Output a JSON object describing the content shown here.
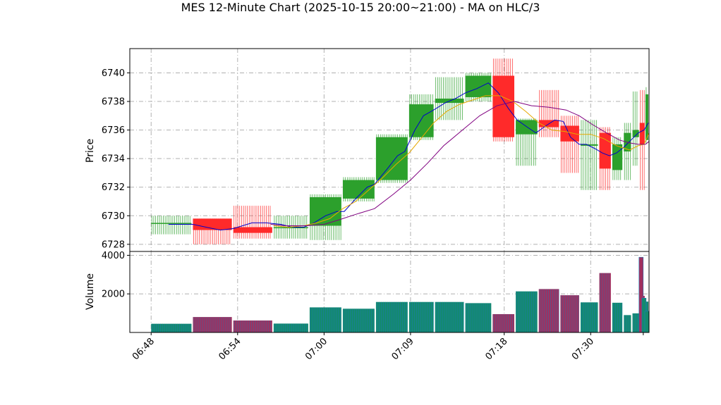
{
  "chart_data": {
    "type": "candlestick",
    "title": "MES 12-Minute Chart (2025-10-15 20:00~21:00) - MA on HLC/3",
    "price_panel": {
      "ylabel": "Price",
      "ylim": [
        6727.5,
        6741.7
      ],
      "yticks": [
        6728,
        6730,
        6732,
        6734,
        6736,
        6738,
        6740
      ],
      "grid": true
    },
    "volume_panel": {
      "ylabel": "Volume",
      "ylim": [
        0,
        4200
      ],
      "yticks": [
        2000,
        4000
      ],
      "grid": true
    },
    "x_axis": {
      "xlim": [
        6.52,
        42.55
      ],
      "ticks": [
        {
          "x": 8,
          "label": "06:48"
        },
        {
          "x": 14,
          "label": "06:54"
        },
        {
          "x": 20,
          "label": "07:00"
        },
        {
          "x": 26,
          "label": "07:09"
        },
        {
          "x": 32.5,
          "label": "07:18"
        },
        {
          "x": 38.5,
          "label": "07:30"
        },
        {
          "x": 42.15,
          "label": ""
        }
      ]
    },
    "colors": {
      "up": "#2ca02c",
      "down": "#ff2a2a",
      "ma_fast": "#0000cc",
      "ma_mid": "#e6a800",
      "ma_slow": "#800080",
      "vol_up": "#138a6e",
      "vol_down": "#a0305f"
    },
    "bars": [
      {
        "x0": 8.0,
        "x1": 10.8,
        "open": 6729.5,
        "high": 6730.0,
        "low": 6728.7,
        "close": 6729.5,
        "volume": 450
      },
      {
        "x0": 10.9,
        "x1": 13.6,
        "open": 6729.8,
        "high": 6729.8,
        "low": 6728.0,
        "close": 6729.0,
        "volume": 800
      },
      {
        "x0": 13.7,
        "x1": 16.4,
        "open": 6729.2,
        "high": 6730.7,
        "low": 6728.4,
        "close": 6728.8,
        "volume": 620
      },
      {
        "x0": 16.5,
        "x1": 18.9,
        "open": 6729.2,
        "high": 6730.0,
        "low": 6728.4,
        "close": 6729.2,
        "volume": 460
      },
      {
        "x0": 19.0,
        "x1": 21.2,
        "open": 6729.3,
        "high": 6731.5,
        "low": 6728.3,
        "close": 6731.3,
        "volume": 1300
      },
      {
        "x0": 21.3,
        "x1": 23.5,
        "open": 6731.2,
        "high": 6732.7,
        "low": 6731.0,
        "close": 6732.5,
        "volume": 1230
      },
      {
        "x0": 23.6,
        "x1": 25.8,
        "open": 6732.5,
        "high": 6735.7,
        "low": 6732.3,
        "close": 6735.5,
        "volume": 1580
      },
      {
        "x0": 25.9,
        "x1": 27.6,
        "open": 6735.5,
        "high": 6738.5,
        "low": 6735.3,
        "close": 6737.8,
        "volume": 1580
      },
      {
        "x0": 27.7,
        "x1": 29.7,
        "open": 6737.9,
        "high": 6739.7,
        "low": 6736.7,
        "close": 6738.2,
        "volume": 1580
      },
      {
        "x0": 29.8,
        "x1": 31.6,
        "open": 6738.3,
        "high": 6740.0,
        "low": 6738.0,
        "close": 6739.8,
        "volume": 1520
      },
      {
        "x0": 31.7,
        "x1": 33.2,
        "open": 6739.8,
        "high": 6741.0,
        "low": 6735.2,
        "close": 6735.5,
        "volume": 950
      },
      {
        "x0": 33.3,
        "x1": 34.8,
        "open": 6735.7,
        "high": 6736.8,
        "low": 6733.5,
        "close": 6736.7,
        "volume": 2130
      },
      {
        "x0": 34.9,
        "x1": 36.3,
        "open": 6736.7,
        "high": 6738.8,
        "low": 6735.5,
        "close": 6736.2,
        "volume": 2250
      },
      {
        "x0": 36.4,
        "x1": 37.7,
        "open": 6736.3,
        "high": 6737.0,
        "low": 6733.0,
        "close": 6735.2,
        "volume": 1930
      },
      {
        "x0": 37.8,
        "x1": 39.0,
        "open": 6734.9,
        "high": 6736.7,
        "low": 6731.8,
        "close": 6735.0,
        "volume": 1560
      },
      {
        "x0": 39.1,
        "x1": 39.9,
        "open": 6735.8,
        "high": 6736.2,
        "low": 6731.8,
        "close": 6733.3,
        "volume": 3080
      },
      {
        "x0": 40.0,
        "x1": 40.7,
        "open": 6733.2,
        "high": 6735.5,
        "low": 6732.5,
        "close": 6735.0,
        "volume": 1540
      },
      {
        "x0": 40.8,
        "x1": 41.3,
        "open": 6734.5,
        "high": 6736.5,
        "low": 6732.5,
        "close": 6735.8,
        "volume": 900
      },
      {
        "x0": 41.4,
        "x1": 41.85,
        "open": 6735.5,
        "high": 6738.7,
        "low": 6733.5,
        "close": 6736.0,
        "volume": 990
      },
      {
        "x0": 41.9,
        "x1": 42.25,
        "open": 6736.5,
        "high": 6738.8,
        "low": 6731.8,
        "close": 6735.0,
        "volume": 1900
      },
      {
        "x0": 42.3,
        "x1": 42.5,
        "open": 6735.3,
        "high": 6739.0,
        "low": 6735.0,
        "close": 6738.5,
        "volume": 1600
      }
    ],
    "volume_spikes": [
      {
        "x": 42.0,
        "volume": 3900,
        "color": "down"
      },
      {
        "x": 42.2,
        "volume": 1780,
        "color": "up"
      },
      {
        "x": 42.4,
        "volume": 1100,
        "color": "up"
      }
    ],
    "ma_series": [
      {
        "key": "ma_fast",
        "points": [
          [
            9.2,
            6729.4
          ],
          [
            10.9,
            6729.4
          ],
          [
            11.8,
            6729.2
          ],
          [
            12.8,
            6729.0
          ],
          [
            13.7,
            6729.1
          ],
          [
            15.0,
            6729.5
          ],
          [
            16.0,
            6729.5
          ],
          [
            17.0,
            6729.4
          ],
          [
            17.8,
            6729.2
          ],
          [
            18.6,
            6729.2
          ],
          [
            19.3,
            6729.5
          ],
          [
            20.1,
            6730.0
          ],
          [
            20.9,
            6730.3
          ],
          [
            21.4,
            6730.3
          ],
          [
            22.2,
            6731.2
          ],
          [
            23.0,
            6732.0
          ],
          [
            23.5,
            6732.2
          ],
          [
            24.4,
            6733.3
          ],
          [
            25.1,
            6734.2
          ],
          [
            25.6,
            6734.5
          ],
          [
            26.3,
            6736.0
          ],
          [
            26.9,
            6737.0
          ],
          [
            27.6,
            6737.4
          ],
          [
            28.4,
            6737.9
          ],
          [
            29.1,
            6738.2
          ],
          [
            29.8,
            6738.6
          ],
          [
            30.6,
            6738.9
          ],
          [
            31.4,
            6739.3
          ],
          [
            32.1,
            6738.6
          ],
          [
            32.8,
            6737.5
          ],
          [
            33.4,
            6736.7
          ],
          [
            34.1,
            6736.2
          ],
          [
            34.7,
            6735.8
          ],
          [
            35.4,
            6736.3
          ],
          [
            36.0,
            6736.7
          ],
          [
            36.6,
            6736.6
          ],
          [
            37.1,
            6735.5
          ],
          [
            37.7,
            6735.0
          ],
          [
            38.2,
            6735.0
          ],
          [
            38.8,
            6734.7
          ],
          [
            39.3,
            6734.4
          ],
          [
            39.8,
            6734.2
          ],
          [
            40.3,
            6734.4
          ],
          [
            40.8,
            6734.8
          ],
          [
            41.3,
            6735.3
          ],
          [
            41.8,
            6735.8
          ],
          [
            42.2,
            6736.0
          ],
          [
            42.5,
            6736.5
          ]
        ]
      },
      {
        "key": "ma_mid",
        "points": [
          [
            16.5,
            6729.3
          ],
          [
            17.5,
            6729.2
          ],
          [
            18.6,
            6729.3
          ],
          [
            19.5,
            6729.5
          ],
          [
            20.4,
            6729.8
          ],
          [
            21.3,
            6730.5
          ],
          [
            22.2,
            6731.0
          ],
          [
            23.1,
            6731.8
          ],
          [
            24.0,
            6732.6
          ],
          [
            25.0,
            6733.6
          ],
          [
            25.9,
            6734.4
          ],
          [
            26.8,
            6735.5
          ],
          [
            27.6,
            6736.5
          ],
          [
            28.5,
            6737.3
          ],
          [
            29.4,
            6737.8
          ],
          [
            30.3,
            6738.1
          ],
          [
            31.2,
            6738.4
          ],
          [
            32.2,
            6738.4
          ],
          [
            33.1,
            6738.0
          ],
          [
            34.0,
            6737.3
          ],
          [
            34.9,
            6736.5
          ],
          [
            35.8,
            6736.0
          ],
          [
            36.7,
            6735.9
          ],
          [
            37.6,
            6735.7
          ],
          [
            38.5,
            6735.7
          ],
          [
            39.4,
            6735.4
          ],
          [
            40.3,
            6734.9
          ],
          [
            41.2,
            6734.6
          ],
          [
            41.8,
            6734.9
          ],
          [
            42.2,
            6735.0
          ],
          [
            42.55,
            6735.8
          ]
        ]
      },
      {
        "key": "ma_slow",
        "points": [
          [
            16.3,
            6729.4
          ],
          [
            17.3,
            6729.3
          ],
          [
            18.8,
            6729.3
          ],
          [
            20.0,
            6729.4
          ],
          [
            21.0,
            6729.7
          ],
          [
            22.2,
            6730.1
          ],
          [
            23.5,
            6730.5
          ],
          [
            24.8,
            6731.5
          ],
          [
            26.0,
            6732.5
          ],
          [
            27.2,
            6733.7
          ],
          [
            28.3,
            6734.9
          ],
          [
            29.6,
            6736.0
          ],
          [
            30.8,
            6737.0
          ],
          [
            32.0,
            6737.7
          ],
          [
            33.2,
            6738.0
          ],
          [
            34.4,
            6737.7
          ],
          [
            35.6,
            6737.6
          ],
          [
            36.8,
            6737.4
          ],
          [
            37.7,
            6737.0
          ],
          [
            38.6,
            6736.4
          ],
          [
            39.6,
            6735.8
          ],
          [
            40.5,
            6735.3
          ],
          [
            41.2,
            6735.1
          ],
          [
            41.8,
            6735.0
          ],
          [
            42.3,
            6735.0
          ],
          [
            42.55,
            6735.2
          ]
        ]
      }
    ]
  }
}
